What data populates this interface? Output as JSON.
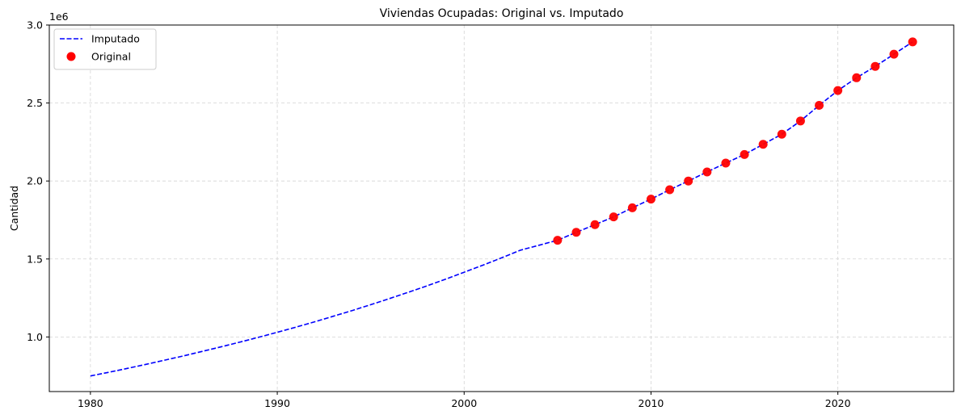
{
  "chart_data": {
    "type": "line",
    "title": "Viviendas Ocupadas: Original vs. Imputado",
    "xlabel": "",
    "ylabel": "Cantidad",
    "offset_text": "1e6",
    "xlim": [
      1977.8,
      2026.2
    ],
    "ylim": [
      0.65,
      3.0
    ],
    "x_ticks": [
      1980,
      1990,
      2000,
      2010,
      2020
    ],
    "x_tick_labels": [
      "1980",
      "1990",
      "2000",
      "2010",
      "2020"
    ],
    "y_ticks": [
      1.0,
      1.5,
      2.0,
      2.5,
      3.0
    ],
    "y_tick_labels": [
      "1.0",
      "1.5",
      "2.0",
      "2.5",
      "3.0"
    ],
    "grid": true,
    "legend_position": "top-left",
    "colors": {
      "imputed": "#0000ff",
      "original": "#ff0000",
      "grid": "#d3d3d3"
    },
    "series": [
      {
        "name": "Imputado",
        "style": "dashed-line",
        "x": [
          1980,
          1981,
          1982,
          1983,
          1984,
          1985,
          1986,
          1987,
          1988,
          1989,
          1990,
          1991,
          1992,
          1993,
          1994,
          1995,
          1996,
          1997,
          1998,
          1999,
          2000,
          2001,
          2002,
          2003,
          2004,
          2005,
          2006,
          2007,
          2008,
          2009,
          2010,
          2011,
          2012,
          2013,
          2014,
          2015,
          2016,
          2017,
          2018,
          2019,
          2020,
          2021,
          2022,
          2023,
          2024
        ],
        "y": [
          0.75,
          0.774,
          0.799,
          0.825,
          0.852,
          0.879,
          0.908,
          0.937,
          0.967,
          0.998,
          1.03,
          1.063,
          1.097,
          1.133,
          1.169,
          1.207,
          1.246,
          1.286,
          1.327,
          1.37,
          1.415,
          1.46,
          1.507,
          1.556,
          1.588,
          1.62,
          1.671,
          1.72,
          1.77,
          1.828,
          1.884,
          1.944,
          2.0,
          2.058,
          2.115,
          2.17,
          2.235,
          2.3,
          2.385,
          2.485,
          2.58,
          2.662,
          2.735,
          2.813,
          2.892
        ]
      },
      {
        "name": "Original",
        "style": "scatter",
        "x": [
          2005,
          2006,
          2007,
          2008,
          2009,
          2010,
          2011,
          2012,
          2013,
          2014,
          2015,
          2016,
          2017,
          2018,
          2019,
          2020,
          2021,
          2022,
          2023,
          2024
        ],
        "y": [
          1.62,
          1.671,
          1.72,
          1.77,
          1.828,
          1.884,
          1.944,
          2.0,
          2.058,
          2.115,
          2.17,
          2.235,
          2.3,
          2.385,
          2.485,
          2.58,
          2.662,
          2.735,
          2.813,
          2.892
        ]
      }
    ]
  }
}
